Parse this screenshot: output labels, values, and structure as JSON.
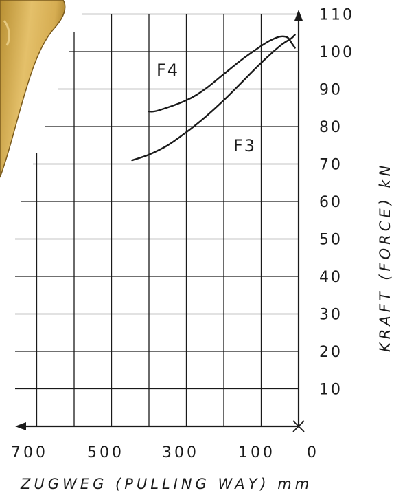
{
  "chart_data": {
    "type": "line",
    "x_axis_direction": "reversed",
    "xlim": [
      0,
      750
    ],
    "ylim": [
      0,
      110
    ],
    "x_tick_labels": [
      {
        "value": 700,
        "label": "700"
      },
      {
        "value": 500,
        "label": "500"
      },
      {
        "value": 300,
        "label": "300"
      },
      {
        "value": 100,
        "label": "100"
      },
      {
        "value": 0,
        "label": "0"
      }
    ],
    "y_tick_labels": [
      {
        "value": 10,
        "label": "10"
      },
      {
        "value": 20,
        "label": "20"
      },
      {
        "value": 30,
        "label": "30"
      },
      {
        "value": 40,
        "label": "40"
      },
      {
        "value": 50,
        "label": "50"
      },
      {
        "value": 60,
        "label": "60"
      },
      {
        "value": 70,
        "label": "70"
      },
      {
        "value": 80,
        "label": "80"
      },
      {
        "value": 90,
        "label": "90"
      },
      {
        "value": 100,
        "label": "100"
      },
      {
        "value": 110,
        "label": "110"
      }
    ],
    "xlabel": "ZUGWEG (PULLING WAY) mm",
    "ylabel": "KRAFT (FORCE) kN",
    "grid": true,
    "series": [
      {
        "name": "F4",
        "x": [
          400,
          375,
          300,
          250,
          200,
          150,
          100,
          75,
          50,
          30,
          20,
          10
        ],
        "y": [
          84,
          84.3,
          87,
          90,
          94,
          98,
          101.5,
          103,
          104,
          103.8,
          102.5,
          101
        ]
      },
      {
        "name": "F3",
        "x": [
          445,
          400,
          350,
          300,
          250,
          200,
          150,
          100,
          50,
          20,
          10
        ],
        "y": [
          71,
          72.5,
          75,
          78.5,
          82.5,
          87,
          92,
          97,
          101.5,
          103.5,
          104.5
        ]
      }
    ],
    "colors": {
      "line": "#1a1a1a",
      "grid": "#1a1a1a",
      "accent": "#c9a24a"
    }
  }
}
